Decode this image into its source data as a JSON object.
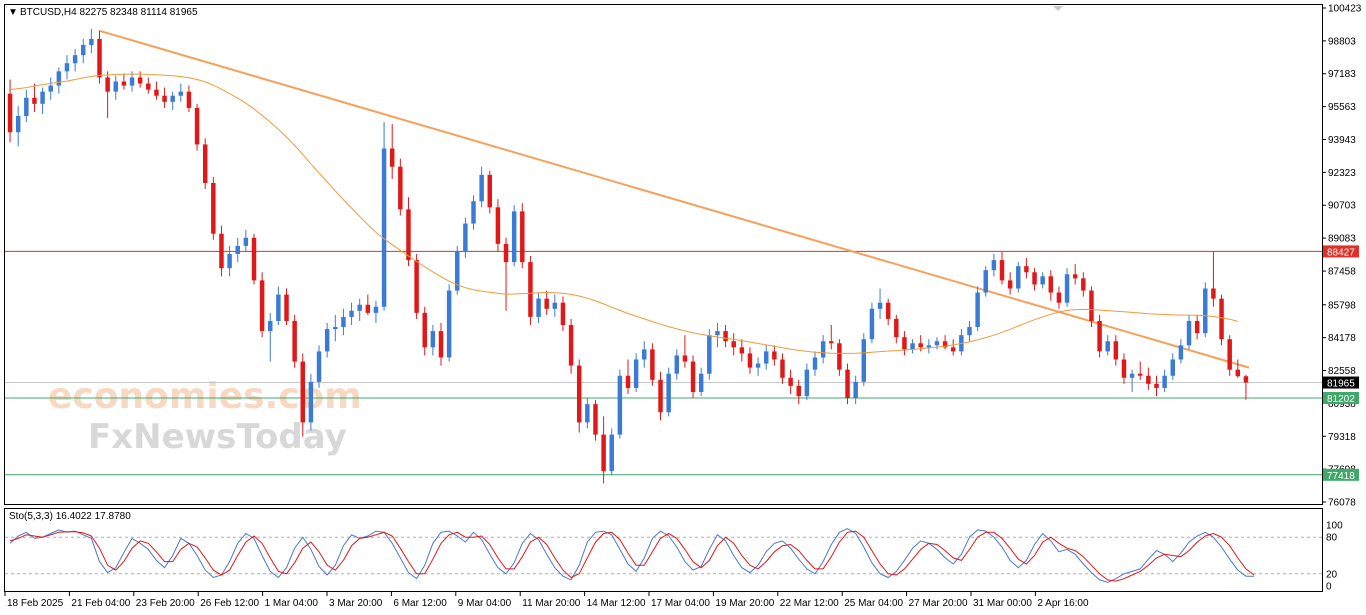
{
  "header": {
    "menu_glyph": "▼",
    "symbol_line": "BTCUSD,H4  82275 82348 81114 81965"
  },
  "oscillator": {
    "title": "Sto(5,3,3) 16.4022 17.8780",
    "levels": [
      "100",
      "80",
      "20",
      "0"
    ]
  },
  "price_axis": {
    "ticks": [
      "100423",
      "98803",
      "97183",
      "95563",
      "93943",
      "92323",
      "90703",
      "89083",
      "87458",
      "85798",
      "84178",
      "82558",
      "80938",
      "79318",
      "77698",
      "76078"
    ]
  },
  "time_axis": {
    "ticks": [
      "18 Feb 2025",
      "21 Feb 04:00",
      "23 Feb 20:00",
      "26 Feb 12:00",
      "1 Mar 04:00",
      "3 Mar 20:00",
      "6 Mar 12:00",
      "9 Mar 04:00",
      "11 Mar 20:00",
      "14 Mar 12:00",
      "17 Mar 04:00",
      "19 Mar 20:00",
      "22 Mar 12:00",
      "25 Mar 04:00",
      "27 Mar 20:00",
      "31 Mar 00:00",
      "2 Apr 16:00"
    ]
  },
  "price_tags": [
    {
      "value": "88427",
      "color": "#e0302a"
    },
    {
      "value": "81965",
      "color": "#000000"
    },
    {
      "value": "81202",
      "color": "#3fa86a"
    },
    {
      "value": "77418",
      "color": "#3fa86a"
    }
  ],
  "watermark": {
    "line1": "economies.com",
    "line2": "FxNewsToday"
  },
  "chart_data": {
    "type": "candlestick",
    "symbol": "BTCUSD",
    "timeframe": "H4",
    "last_bar": {
      "open": 82275,
      "high": 82348,
      "low": 81114,
      "close": 81965
    },
    "ylim": [
      76078,
      100423
    ],
    "colors": {
      "bull": "#3a7bd5",
      "bear": "#e01818",
      "ma": "#f29a3a",
      "trendline": "#f7a05a",
      "resistance": "#e0302a",
      "support": "#3fa86a",
      "stoch_main": "#4a78d0",
      "stoch_signal": "#e01818"
    },
    "horizontal_levels": [
      88427,
      81202,
      77418
    ],
    "current_price": 81965,
    "trendline": [
      [
        0,
        99300
      ],
      [
        1,
        82700
      ]
    ],
    "stochastic": {
      "k_period": 5,
      "d_period": 3,
      "slowing": 3,
      "main": 16.4022,
      "signal": 17.878,
      "levels": [
        80,
        20
      ]
    },
    "candles": [
      [
        96200,
        96900,
        93800,
        94300
      ],
      [
        94300,
        95600,
        93600,
        95100
      ],
      [
        95100,
        96400,
        94800,
        96000
      ],
      [
        96000,
        96700,
        95300,
        95700
      ],
      [
        95700,
        96500,
        95200,
        96300
      ],
      [
        96300,
        97000,
        95900,
        96600
      ],
      [
        96600,
        97500,
        96200,
        97300
      ],
      [
        97300,
        98100,
        96900,
        97700
      ],
      [
        97700,
        98400,
        97300,
        98100
      ],
      [
        98100,
        98900,
        97700,
        98600
      ],
      [
        98600,
        99400,
        98200,
        98900
      ],
      [
        98900,
        99300,
        96700,
        97000
      ],
      [
        97000,
        97300,
        95000,
        96300
      ],
      [
        96300,
        97100,
        95900,
        96800
      ],
      [
        96800,
        97200,
        96400,
        96600
      ],
      [
        96600,
        97300,
        96300,
        97000
      ],
      [
        97000,
        97300,
        96500,
        96700
      ],
      [
        96700,
        97000,
        96200,
        96400
      ],
      [
        96400,
        96800,
        95900,
        96100
      ],
      [
        96100,
        96500,
        95500,
        95800
      ],
      [
        95800,
        96300,
        95400,
        96100
      ],
      [
        96100,
        96700,
        95800,
        96300
      ],
      [
        96300,
        96600,
        95300,
        95500
      ],
      [
        95500,
        95700,
        93400,
        93700
      ],
      [
        93700,
        94000,
        91500,
        91800
      ],
      [
        91800,
        92100,
        89000,
        89300
      ],
      [
        89300,
        89700,
        87200,
        87600
      ],
      [
        87600,
        88700,
        87200,
        88300
      ],
      [
        88300,
        89100,
        87900,
        88700
      ],
      [
        88700,
        89500,
        88400,
        89100
      ],
      [
        89100,
        89300,
        86800,
        87000
      ],
      [
        87000,
        87400,
        84200,
        84500
      ],
      [
        84500,
        85400,
        83000,
        85000
      ],
      [
        85000,
        86700,
        84800,
        86300
      ],
      [
        86300,
        86600,
        84800,
        85000
      ],
      [
        85000,
        85300,
        82700,
        83000
      ],
      [
        83000,
        83400,
        79300,
        80000
      ],
      [
        80000,
        82400,
        79600,
        82000
      ],
      [
        82000,
        83800,
        81700,
        83500
      ],
      [
        83500,
        84900,
        83200,
        84600
      ],
      [
        84600,
        85300,
        84000,
        84700
      ],
      [
        84700,
        85600,
        84300,
        85200
      ],
      [
        85200,
        85900,
        84800,
        85500
      ],
      [
        85500,
        86100,
        85000,
        85800
      ],
      [
        85800,
        86300,
        85300,
        85400
      ],
      [
        85400,
        86000,
        84900,
        85700
      ],
      [
        85700,
        94800,
        85500,
        93500
      ],
      [
        93500,
        94700,
        92000,
        92600
      ],
      [
        92600,
        93000,
        90200,
        90500
      ],
      [
        90500,
        91100,
        87700,
        88000
      ],
      [
        88000,
        88300,
        85100,
        85400
      ],
      [
        85400,
        85700,
        83300,
        83700
      ],
      [
        83700,
        84800,
        83300,
        84500
      ],
      [
        84500,
        84900,
        82800,
        83200
      ],
      [
        83200,
        86800,
        83000,
        86500
      ],
      [
        86500,
        88700,
        86300,
        88400
      ],
      [
        88400,
        90100,
        88100,
        89800
      ],
      [
        89800,
        91200,
        89500,
        90900
      ],
      [
        90900,
        92600,
        90600,
        92200
      ],
      [
        92200,
        92400,
        90300,
        90600
      ],
      [
        90600,
        91000,
        88400,
        88800
      ],
      [
        88800,
        89100,
        85500,
        87900
      ],
      [
        87900,
        90700,
        87700,
        90400
      ],
      [
        90400,
        90800,
        87600,
        87900
      ],
      [
        87900,
        88200,
        84800,
        85200
      ],
      [
        85200,
        86400,
        84900,
        86100
      ],
      [
        86100,
        86500,
        85300,
        85600
      ],
      [
        85600,
        86300,
        85200,
        85900
      ],
      [
        85900,
        86200,
        84500,
        84800
      ],
      [
        84800,
        85100,
        82400,
        82800
      ],
      [
        82800,
        83100,
        79500,
        80000
      ],
      [
        80000,
        81200,
        79700,
        80900
      ],
      [
        80900,
        81100,
        79100,
        79400
      ],
      [
        79400,
        80300,
        77000,
        77600
      ],
      [
        77600,
        79700,
        77400,
        79400
      ],
      [
        79400,
        82600,
        79200,
        82300
      ],
      [
        82300,
        83100,
        81400,
        81700
      ],
      [
        81700,
        83400,
        81500,
        83100
      ],
      [
        83100,
        84000,
        82700,
        83600
      ],
      [
        83600,
        83900,
        81800,
        82100
      ],
      [
        82100,
        82500,
        80100,
        80500
      ],
      [
        80500,
        82700,
        80300,
        82400
      ],
      [
        82400,
        83600,
        82100,
        83300
      ],
      [
        83300,
        84300,
        82700,
        83000
      ],
      [
        83000,
        83300,
        81200,
        81500
      ],
      [
        81500,
        82700,
        81300,
        82400
      ],
      [
        82400,
        84600,
        82100,
        84300
      ],
      [
        84300,
        84900,
        83700,
        84500
      ],
      [
        84500,
        84800,
        83700,
        84000
      ],
      [
        84000,
        84400,
        83300,
        83700
      ],
      [
        83700,
        84100,
        83000,
        83400
      ],
      [
        83400,
        83700,
        82400,
        82700
      ],
      [
        82700,
        83200,
        82300,
        82900
      ],
      [
        82900,
        83800,
        82600,
        83500
      ],
      [
        83500,
        83800,
        82800,
        83100
      ],
      [
        83100,
        83400,
        81900,
        82200
      ],
      [
        82200,
        82600,
        81400,
        81800
      ],
      [
        81800,
        82100,
        80900,
        81300
      ],
      [
        81300,
        82900,
        81100,
        82600
      ],
      [
        82600,
        83500,
        82300,
        83200
      ],
      [
        83200,
        84300,
        82900,
        84000
      ],
      [
        84000,
        84800,
        83600,
        83900
      ],
      [
        83900,
        84100,
        82300,
        82600
      ],
      [
        82600,
        82900,
        80900,
        81200
      ],
      [
        81200,
        82300,
        80900,
        82000
      ],
      [
        82000,
        84400,
        81800,
        84100
      ],
      [
        84100,
        85900,
        83900,
        85600
      ],
      [
        85600,
        86600,
        85100,
        85900
      ],
      [
        85900,
        86100,
        84800,
        85100
      ],
      [
        85100,
        85300,
        83900,
        84200
      ],
      [
        84200,
        84500,
        83300,
        83600
      ],
      [
        83600,
        84100,
        83400,
        83900
      ],
      [
        83900,
        84300,
        83500,
        83700
      ],
      [
        83700,
        84100,
        83400,
        83800
      ],
      [
        83800,
        84200,
        83600,
        84000
      ],
      [
        84000,
        84300,
        83600,
        83700
      ],
      [
        83700,
        84100,
        83300,
        83500
      ],
      [
        83500,
        84600,
        83300,
        84300
      ],
      [
        84300,
        85000,
        84000,
        84700
      ],
      [
        84700,
        86700,
        84500,
        86400
      ],
      [
        86400,
        87700,
        86200,
        87500
      ],
      [
        87500,
        88300,
        87200,
        88000
      ],
      [
        88000,
        88400,
        86800,
        87000
      ],
      [
        87000,
        87400,
        86300,
        86600
      ],
      [
        86600,
        87900,
        86400,
        87700
      ],
      [
        87700,
        88100,
        87100,
        87400
      ],
      [
        87400,
        87600,
        86500,
        86800
      ],
      [
        86800,
        87400,
        86600,
        87200
      ],
      [
        87200,
        87500,
        86000,
        86400
      ],
      [
        86400,
        86700,
        85600,
        85900
      ],
      [
        85900,
        87600,
        85700,
        87300
      ],
      [
        87300,
        87800,
        86800,
        87100
      ],
      [
        87100,
        87400,
        86200,
        86500
      ],
      [
        86500,
        86700,
        84700,
        85000
      ],
      [
        85000,
        85300,
        83200,
        83500
      ],
      [
        83500,
        84300,
        83300,
        84000
      ],
      [
        84000,
        84300,
        82800,
        83100
      ],
      [
        83100,
        83400,
        81900,
        82200
      ],
      [
        82200,
        82600,
        81500,
        82400
      ],
      [
        82400,
        83000,
        82100,
        82300
      ],
      [
        82300,
        82700,
        81600,
        81900
      ],
      [
        81900,
        82300,
        81300,
        81700
      ],
      [
        81700,
        82600,
        81500,
        82300
      ],
      [
        82300,
        83400,
        82100,
        83100
      ],
      [
        83100,
        84100,
        82900,
        83800
      ],
      [
        83800,
        85300,
        83600,
        85000
      ],
      [
        85000,
        85300,
        84100,
        84400
      ],
      [
        84400,
        86900,
        84200,
        86600
      ],
      [
        86600,
        88427,
        85700,
        86100
      ],
      [
        86100,
        86300,
        83800,
        84100
      ],
      [
        84100,
        84300,
        82300,
        82600
      ],
      [
        82600,
        83100,
        82200,
        82275
      ],
      [
        82275,
        82348,
        81114,
        81965
      ]
    ],
    "moving_average": [
      96400,
      96450,
      96500,
      96580,
      96650,
      96700,
      96760,
      96820,
      96900,
      96980,
      97050,
      97100,
      97120,
      97150,
      97160,
      97170,
      97165,
      97150,
      97130,
      97110,
      97080,
      97040,
      96990,
      96900,
      96780,
      96620,
      96420,
      96200,
      95980,
      95730,
      95450,
      95130,
      94800,
      94440,
      94060,
      93650,
      93200,
      92740,
      92290,
      91850,
      91410,
      90980,
      90560,
      90150,
      89750,
      89370,
      89050,
      88760,
      88480,
      88200,
      87930,
      87670,
      87420,
      87180,
      86960,
      86780,
      86640,
      86540,
      86470,
      86410,
      86360,
      86320,
      86330,
      86350,
      86370,
      86390,
      86400,
      86390,
      86360,
      86310,
      86230,
      86120,
      85990,
      85840,
      85680,
      85520,
      85370,
      85230,
      85100,
      84970,
      84840,
      84720,
      84610,
      84510,
      84420,
      84340,
      84270,
      84210,
      84150,
      84090,
      84030,
      83960,
      83890,
      83820,
      83750,
      83680,
      83610,
      83550,
      83500,
      83460,
      83430,
      83410,
      83400,
      83400,
      83410,
      83430,
      83460,
      83490,
      83520,
      83540,
      83570,
      83600,
      83630,
      83670,
      83710,
      83760,
      83820,
      83890,
      83970,
      84070,
      84180,
      84300,
      84440,
      84590,
      84750,
      84910,
      85060,
      85200,
      85330,
      85440,
      85520,
      85560,
      85570,
      85560,
      85540,
      85510,
      85480,
      85450,
      85420,
      85390,
      85360,
      85340,
      85320,
      85300,
      85290,
      85290,
      85280,
      85260,
      85220,
      85160,
      85080,
      84980
    ],
    "stoch_main": [
      70,
      82,
      88,
      78,
      80,
      86,
      92,
      88,
      90,
      84,
      78,
      40,
      22,
      30,
      55,
      78,
      70,
      60,
      42,
      30,
      50,
      78,
      70,
      50,
      26,
      14,
      18,
      40,
      70,
      86,
      78,
      50,
      24,
      14,
      30,
      62,
      80,
      60,
      32,
      18,
      34,
      66,
      84,
      78,
      82,
      90,
      88,
      70,
      46,
      22,
      12,
      34,
      70,
      88,
      90,
      82,
      72,
      88,
      76,
      52,
      30,
      20,
      38,
      70,
      86,
      76,
      52,
      30,
      16,
      10,
      34,
      72,
      88,
      90,
      84,
      60,
      36,
      24,
      46,
      78,
      90,
      82,
      64,
      40,
      26,
      32,
      60,
      84,
      74,
      50,
      30,
      22,
      34,
      56,
      70,
      74,
      62,
      44,
      28,
      20,
      40,
      68,
      88,
      94,
      86,
      64,
      38,
      20,
      14,
      24,
      42,
      62,
      74,
      70,
      60,
      46,
      36,
      52,
      80,
      92,
      90,
      80,
      64,
      42,
      30,
      42,
      68,
      86,
      74,
      56,
      60,
      52,
      36,
      22,
      10,
      6,
      12,
      20,
      24,
      28,
      44,
      58,
      52,
      40,
      54,
      72,
      82,
      88,
      80,
      64,
      44,
      26,
      16,
      16
    ],
    "stoch_signal": [
      74,
      78,
      84,
      82,
      80,
      84,
      88,
      89,
      89,
      87,
      82,
      62,
      34,
      26,
      40,
      62,
      74,
      70,
      56,
      40,
      40,
      60,
      70,
      64,
      46,
      26,
      18,
      26,
      50,
      72,
      82,
      70,
      46,
      24,
      20,
      38,
      62,
      72,
      56,
      34,
      26,
      42,
      66,
      78,
      80,
      84,
      88,
      82,
      62,
      40,
      20,
      20,
      44,
      70,
      84,
      88,
      80,
      80,
      82,
      68,
      46,
      28,
      28,
      48,
      72,
      80,
      68,
      46,
      26,
      14,
      20,
      46,
      72,
      86,
      88,
      76,
      54,
      34,
      34,
      56,
      78,
      86,
      78,
      60,
      40,
      30,
      42,
      66,
      80,
      70,
      50,
      34,
      28,
      40,
      56,
      66,
      68,
      58,
      42,
      28,
      28,
      48,
      72,
      88,
      90,
      80,
      58,
      36,
      20,
      18,
      28,
      44,
      60,
      70,
      68,
      58,
      46,
      42,
      60,
      80,
      88,
      88,
      78,
      62,
      44,
      36,
      50,
      72,
      80,
      70,
      62,
      58,
      48,
      34,
      20,
      10,
      8,
      12,
      18,
      24,
      34,
      46,
      52,
      50,
      48,
      58,
      72,
      82,
      86,
      80,
      66,
      46,
      28,
      18
    ]
  }
}
